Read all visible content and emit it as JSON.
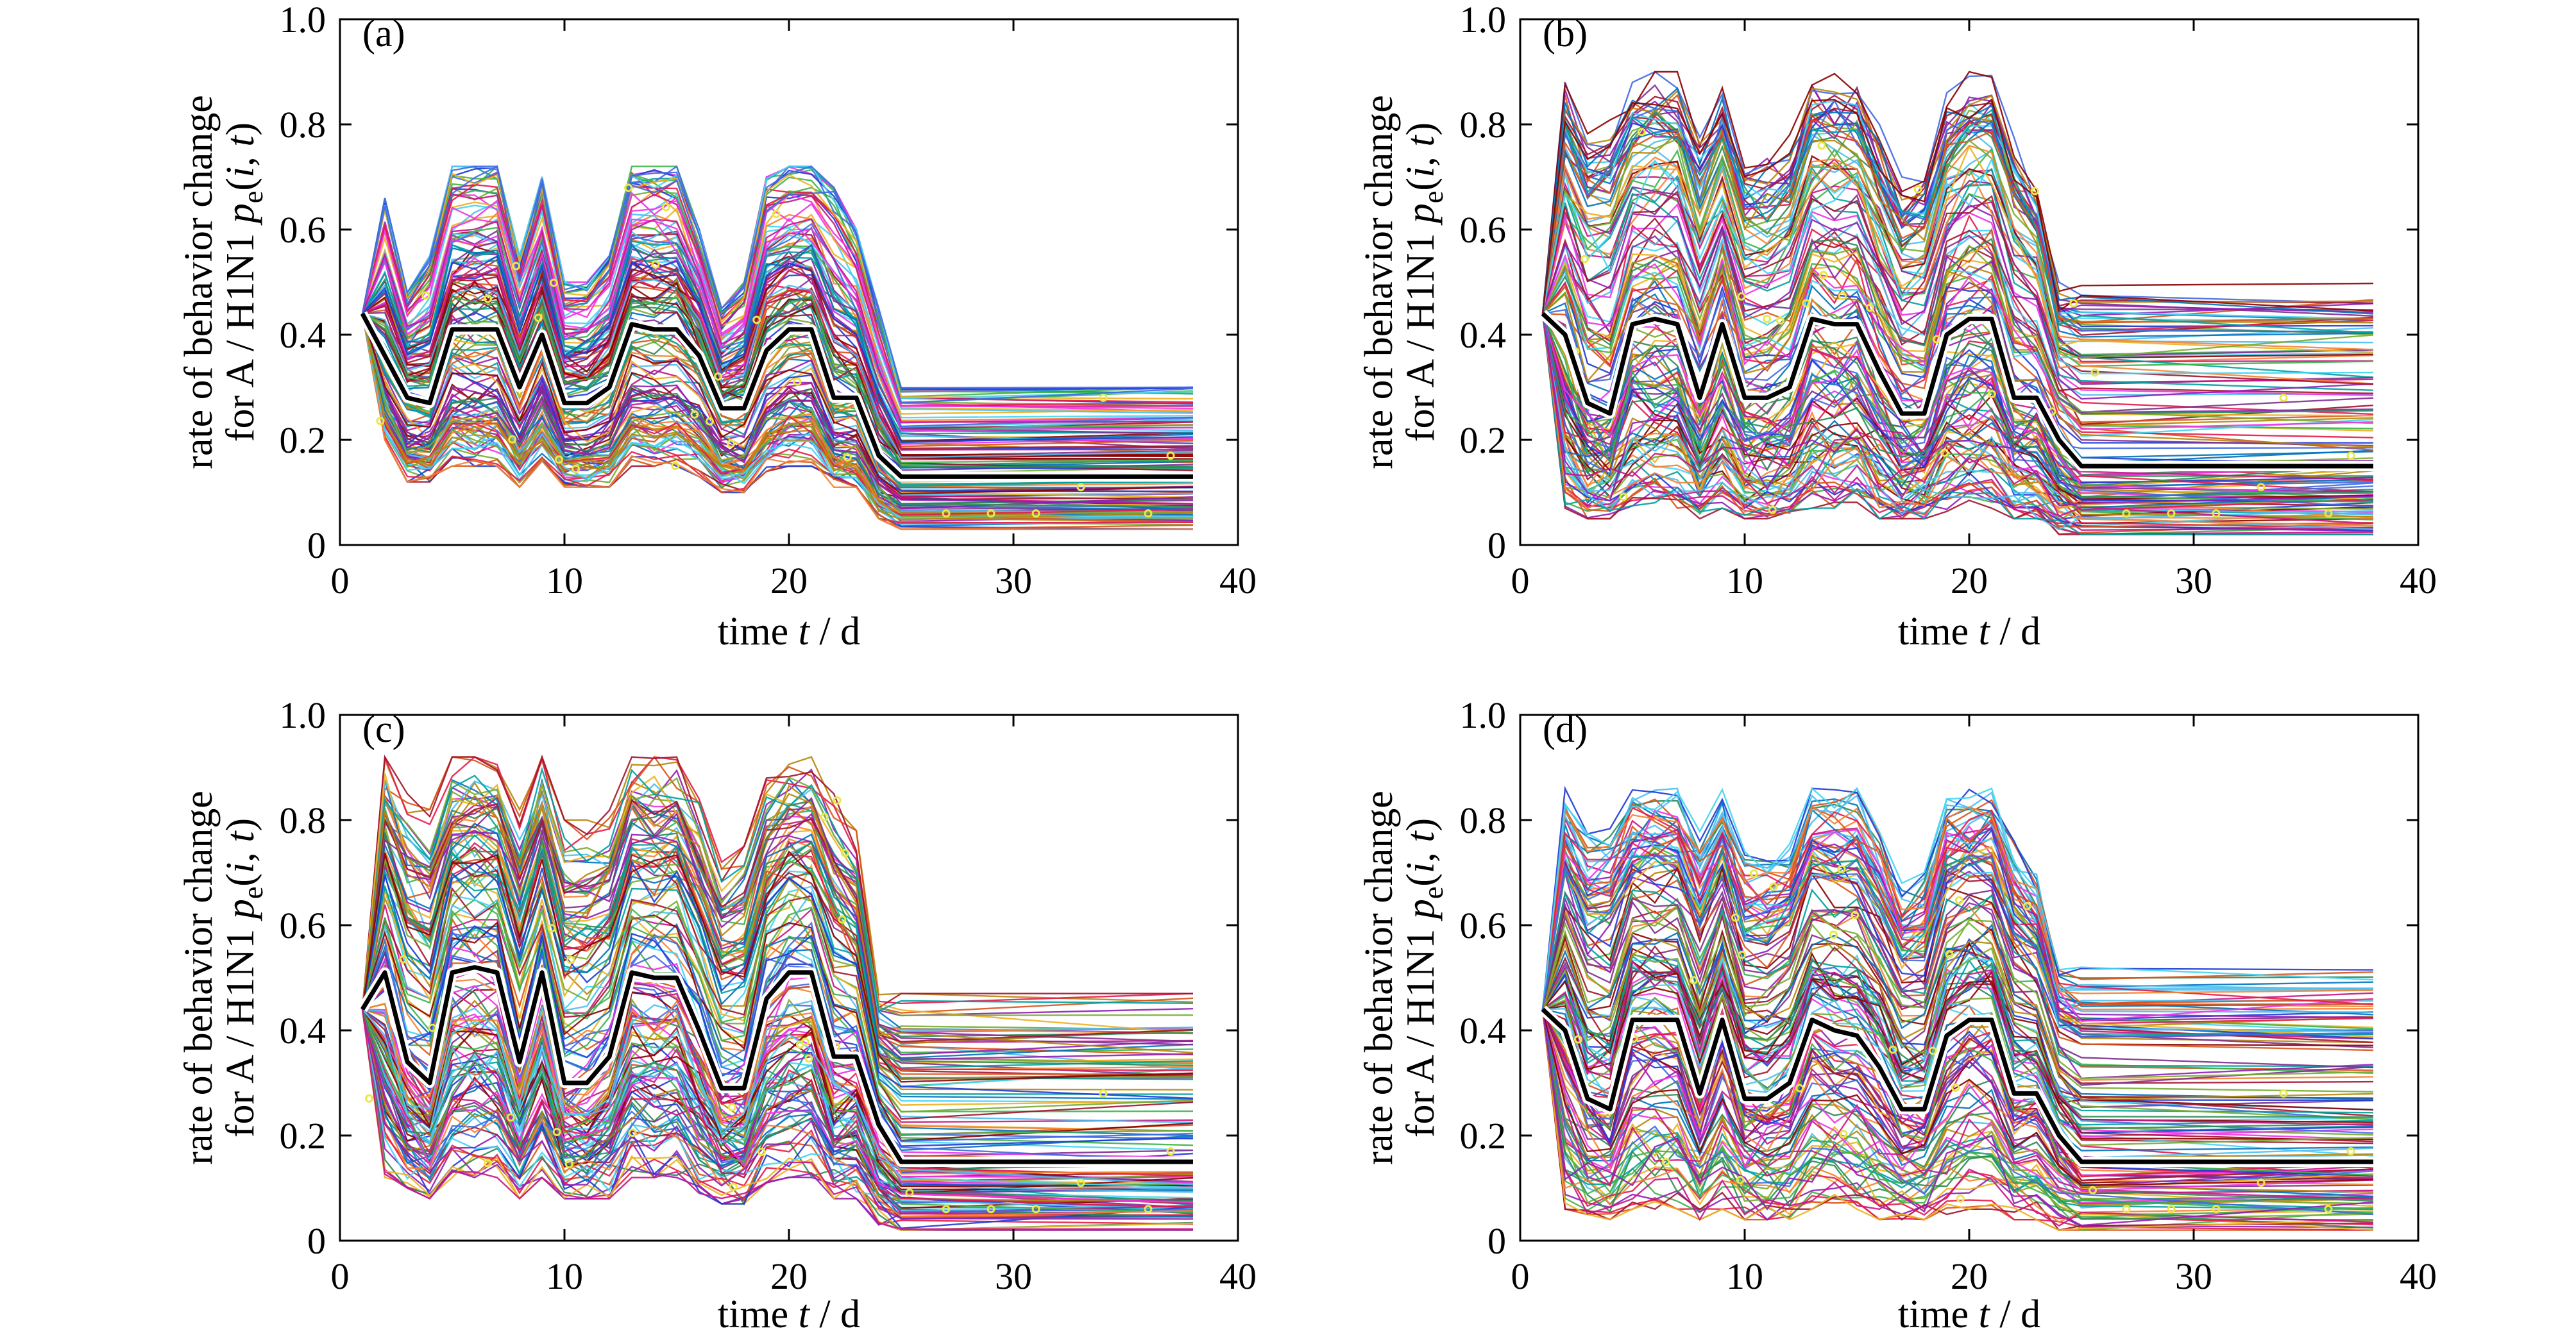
{
  "figure": {
    "panels": [
      {
        "label": "(a)",
        "xlabel": [
          "time ",
          "t",
          " / d"
        ],
        "ylabel_line1": "rate of behavior change",
        "ylabel_line2": [
          "for A / H1N1 ",
          "p",
          "e",
          "(",
          "i",
          ", ",
          "t",
          ")"
        ]
      },
      {
        "label": "(b)",
        "xlabel": [
          "time ",
          "t",
          " / d"
        ],
        "ylabel_line1": "rate of behavior change",
        "ylabel_line2": [
          "for A / H1N1 ",
          "p",
          "e",
          "(",
          "i",
          ", ",
          "t",
          ")"
        ]
      },
      {
        "label": "(c)",
        "xlabel": [
          "time ",
          "t",
          " / d"
        ],
        "ylabel_line1": "rate of behavior change",
        "ylabel_line2": [
          "for A / H1N1 ",
          "p",
          "e",
          "(",
          "i",
          ", ",
          "t",
          ")"
        ]
      },
      {
        "label": "(d)",
        "xlabel": [
          "time ",
          "t",
          " / d"
        ],
        "ylabel_line1": "rate of behavior change",
        "ylabel_line2": [
          "for A / H1N1 ",
          "p",
          "e",
          "(",
          "i",
          ", ",
          "t",
          ")"
        ]
      }
    ]
  },
  "chart_data": [
    {
      "type": "line",
      "panel": "(a)",
      "xlim": [
        0,
        40
      ],
      "ylim": [
        0,
        1
      ],
      "xticks": [
        0,
        10,
        20,
        30,
        40
      ],
      "yticks": [
        0,
        0.2,
        0.4,
        0.6,
        0.8,
        1.0
      ],
      "ytick_labels": [
        "0",
        "0.2",
        "0.4",
        "0.6",
        "0.8",
        "1.0"
      ],
      "x": [
        1,
        2,
        3,
        4,
        5,
        6,
        7,
        8,
        9,
        10,
        11,
        12,
        13,
        14,
        15,
        16,
        17,
        18,
        19,
        20,
        21,
        22,
        23,
        24,
        25,
        38
      ],
      "mean": [
        0.44,
        0.36,
        0.28,
        0.27,
        0.41,
        0.41,
        0.41,
        0.3,
        0.4,
        0.27,
        0.27,
        0.3,
        0.42,
        0.41,
        0.41,
        0.36,
        0.26,
        0.26,
        0.37,
        0.41,
        0.41,
        0.28,
        0.28,
        0.17,
        0.13,
        0.13
      ],
      "envelope_upper": [
        0.44,
        0.66,
        0.48,
        0.55,
        0.72,
        0.72,
        0.72,
        0.55,
        0.7,
        0.5,
        0.5,
        0.55,
        0.72,
        0.72,
        0.72,
        0.6,
        0.45,
        0.5,
        0.7,
        0.72,
        0.72,
        0.68,
        0.6,
        0.45,
        0.3,
        0.3
      ],
      "envelope_lower": [
        0.44,
        0.2,
        0.12,
        0.12,
        0.15,
        0.15,
        0.15,
        0.11,
        0.16,
        0.11,
        0.11,
        0.11,
        0.15,
        0.15,
        0.15,
        0.13,
        0.1,
        0.1,
        0.14,
        0.15,
        0.15,
        0.11,
        0.11,
        0.05,
        0.03,
        0.03
      ],
      "ensemble_runs": 140,
      "colors": {
        "mean_line": "#000000",
        "mean_halo": "#ffffff",
        "markers": "#e8e84a"
      }
    },
    {
      "type": "line",
      "panel": "(b)",
      "xlim": [
        0,
        40
      ],
      "ylim": [
        0,
        1
      ],
      "xticks": [
        0,
        10,
        20,
        30,
        40
      ],
      "yticks": [
        0,
        0.2,
        0.4,
        0.6,
        0.8,
        1.0
      ],
      "ytick_labels": [
        "0",
        "0.2",
        "0.4",
        "0.6",
        "0.8",
        "1.0"
      ],
      "x": [
        1,
        2,
        3,
        4,
        5,
        6,
        7,
        8,
        9,
        10,
        11,
        12,
        13,
        14,
        15,
        16,
        17,
        18,
        19,
        20,
        21,
        22,
        23,
        24,
        25,
        38
      ],
      "mean": [
        0.44,
        0.4,
        0.27,
        0.25,
        0.42,
        0.43,
        0.42,
        0.28,
        0.42,
        0.28,
        0.28,
        0.3,
        0.43,
        0.42,
        0.42,
        0.33,
        0.25,
        0.25,
        0.4,
        0.43,
        0.43,
        0.28,
        0.28,
        0.2,
        0.15,
        0.15
      ],
      "envelope_upper": [
        0.44,
        0.88,
        0.8,
        0.82,
        0.88,
        0.9,
        0.9,
        0.8,
        0.88,
        0.75,
        0.75,
        0.78,
        0.9,
        0.9,
        0.9,
        0.8,
        0.7,
        0.72,
        0.86,
        0.9,
        0.9,
        0.78,
        0.7,
        0.5,
        0.5,
        0.5
      ],
      "envelope_lower": [
        0.44,
        0.07,
        0.05,
        0.05,
        0.07,
        0.07,
        0.07,
        0.05,
        0.07,
        0.05,
        0.05,
        0.05,
        0.07,
        0.07,
        0.07,
        0.05,
        0.05,
        0.05,
        0.06,
        0.07,
        0.07,
        0.05,
        0.05,
        0.02,
        0.02,
        0.02
      ],
      "ensemble_runs": 140,
      "colors": {
        "mean_line": "#000000",
        "mean_halo": "#ffffff",
        "markers": "#e8e84a"
      }
    },
    {
      "type": "line",
      "panel": "(c)",
      "xlim": [
        0,
        40
      ],
      "ylim": [
        0,
        1
      ],
      "xticks": [
        0,
        10,
        20,
        30,
        40
      ],
      "yticks": [
        0,
        0.2,
        0.4,
        0.6,
        0.8,
        1.0
      ],
      "ytick_labels": [
        "0",
        "0.2",
        "0.4",
        "0.6",
        "0.8",
        "1.0"
      ],
      "x": [
        1,
        2,
        3,
        4,
        5,
        6,
        7,
        8,
        9,
        10,
        11,
        12,
        13,
        14,
        15,
        16,
        17,
        18,
        19,
        20,
        21,
        22,
        23,
        24,
        25,
        38
      ],
      "mean": [
        0.44,
        0.51,
        0.34,
        0.3,
        0.51,
        0.52,
        0.51,
        0.34,
        0.51,
        0.3,
        0.3,
        0.35,
        0.51,
        0.5,
        0.5,
        0.4,
        0.29,
        0.29,
        0.46,
        0.51,
        0.51,
        0.35,
        0.35,
        0.22,
        0.15,
        0.15
      ],
      "envelope_upper": [
        0.44,
        0.92,
        0.85,
        0.82,
        0.92,
        0.92,
        0.92,
        0.82,
        0.92,
        0.8,
        0.8,
        0.82,
        0.92,
        0.92,
        0.92,
        0.84,
        0.72,
        0.75,
        0.88,
        0.92,
        0.92,
        0.85,
        0.78,
        0.47,
        0.47,
        0.47
      ],
      "envelope_lower": [
        0.44,
        0.12,
        0.1,
        0.08,
        0.12,
        0.12,
        0.12,
        0.08,
        0.12,
        0.08,
        0.08,
        0.08,
        0.12,
        0.12,
        0.12,
        0.09,
        0.07,
        0.07,
        0.11,
        0.12,
        0.12,
        0.08,
        0.08,
        0.03,
        0.02,
        0.02
      ],
      "ensemble_runs": 140,
      "colors": {
        "mean_line": "#000000",
        "mean_halo": "#ffffff",
        "markers": "#e8e84a"
      }
    },
    {
      "type": "line",
      "panel": "(d)",
      "xlim": [
        0,
        40
      ],
      "ylim": [
        0,
        1
      ],
      "xticks": [
        0,
        10,
        20,
        30,
        40
      ],
      "yticks": [
        0,
        0.2,
        0.4,
        0.6,
        0.8,
        1.0
      ],
      "ytick_labels": [
        "0",
        "0.2",
        "0.4",
        "0.6",
        "0.8",
        "1.0"
      ],
      "x": [
        1,
        2,
        3,
        4,
        5,
        6,
        7,
        8,
        9,
        10,
        11,
        12,
        13,
        14,
        15,
        16,
        17,
        18,
        19,
        20,
        21,
        22,
        23,
        24,
        25,
        38
      ],
      "mean": [
        0.44,
        0.4,
        0.27,
        0.25,
        0.42,
        0.42,
        0.42,
        0.28,
        0.42,
        0.27,
        0.27,
        0.3,
        0.42,
        0.4,
        0.39,
        0.33,
        0.25,
        0.25,
        0.39,
        0.42,
        0.42,
        0.28,
        0.28,
        0.2,
        0.15,
        0.15
      ],
      "envelope_upper": [
        0.44,
        0.86,
        0.78,
        0.8,
        0.86,
        0.86,
        0.86,
        0.78,
        0.86,
        0.74,
        0.74,
        0.76,
        0.86,
        0.86,
        0.86,
        0.78,
        0.68,
        0.7,
        0.84,
        0.86,
        0.86,
        0.76,
        0.7,
        0.52,
        0.52,
        0.52
      ],
      "envelope_lower": [
        0.44,
        0.06,
        0.05,
        0.04,
        0.06,
        0.06,
        0.06,
        0.04,
        0.06,
        0.04,
        0.04,
        0.04,
        0.06,
        0.06,
        0.06,
        0.04,
        0.04,
        0.04,
        0.05,
        0.06,
        0.06,
        0.04,
        0.04,
        0.02,
        0.02,
        0.02
      ],
      "ensemble_runs": 140,
      "colors": {
        "mean_line": "#000000",
        "mean_halo": "#ffffff",
        "markers": "#e8e84a"
      }
    }
  ]
}
